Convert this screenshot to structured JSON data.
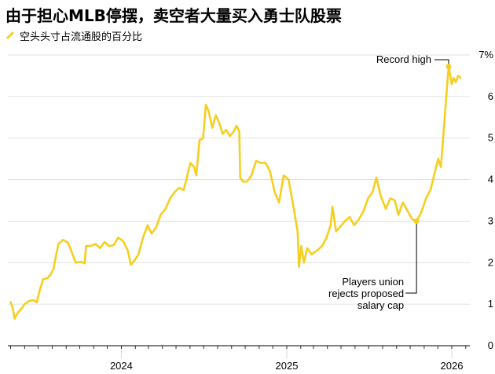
{
  "title": "由于担心MLB停摆，卖空者大量买入勇士队股票",
  "colors": {
    "series": "#f5cf1f",
    "grid": "#d9d9d9",
    "axis": "#000000",
    "marker_line": "#000000"
  },
  "chart_data": {
    "type": "line",
    "series": [
      {
        "name": "空头头寸占流通股的百分比",
        "points": [
          [
            "2023-05-01",
            1.05
          ],
          [
            "2023-05-06",
            0.9
          ],
          [
            "2023-05-10",
            0.65
          ],
          [
            "2023-05-16",
            0.78
          ],
          [
            "2023-05-24",
            0.88
          ],
          [
            "2023-06-01",
            1.0
          ],
          [
            "2023-06-10",
            1.07
          ],
          [
            "2023-06-20",
            1.1
          ],
          [
            "2023-06-28",
            1.05
          ],
          [
            "2023-07-05",
            1.35
          ],
          [
            "2023-07-12",
            1.6
          ],
          [
            "2023-07-20",
            1.62
          ],
          [
            "2023-07-28",
            1.7
          ],
          [
            "2023-08-04",
            1.85
          ],
          [
            "2023-08-10",
            2.2
          ],
          [
            "2023-08-15",
            2.45
          ],
          [
            "2023-08-25",
            2.55
          ],
          [
            "2023-09-05",
            2.48
          ],
          [
            "2023-09-12",
            2.3
          ],
          [
            "2023-09-22",
            2.0
          ],
          [
            "2023-10-05",
            2.02
          ],
          [
            "2023-10-12",
            1.98
          ],
          [
            "2023-10-15",
            2.4
          ],
          [
            "2023-10-25",
            2.4
          ],
          [
            "2023-11-05",
            2.45
          ],
          [
            "2023-11-15",
            2.35
          ],
          [
            "2023-11-25",
            2.5
          ],
          [
            "2023-12-05",
            2.4
          ],
          [
            "2023-12-15",
            2.42
          ],
          [
            "2023-12-25",
            2.6
          ],
          [
            "2024-01-05",
            2.52
          ],
          [
            "2024-01-15",
            2.3
          ],
          [
            "2024-01-22",
            1.95
          ],
          [
            "2024-01-30",
            2.05
          ],
          [
            "2024-02-08",
            2.2
          ],
          [
            "2024-02-18",
            2.6
          ],
          [
            "2024-02-28",
            2.9
          ],
          [
            "2024-03-08",
            2.7
          ],
          [
            "2024-03-18",
            2.85
          ],
          [
            "2024-03-28",
            3.15
          ],
          [
            "2024-04-08",
            3.3
          ],
          [
            "2024-04-18",
            3.55
          ],
          [
            "2024-04-28",
            3.7
          ],
          [
            "2024-05-08",
            3.8
          ],
          [
            "2024-05-18",
            3.75
          ],
          [
            "2024-05-25",
            4.05
          ],
          [
            "2024-06-02",
            4.4
          ],
          [
            "2024-06-10",
            4.3
          ],
          [
            "2024-06-15",
            4.1
          ],
          [
            "2024-06-22",
            4.95
          ],
          [
            "2024-06-30",
            5.0
          ],
          [
            "2024-07-06",
            5.8
          ],
          [
            "2024-07-12",
            5.65
          ],
          [
            "2024-07-20",
            5.25
          ],
          [
            "2024-07-28",
            5.55
          ],
          [
            "2024-08-05",
            5.35
          ],
          [
            "2024-08-12",
            5.1
          ],
          [
            "2024-08-20",
            5.2
          ],
          [
            "2024-08-28",
            5.05
          ],
          [
            "2024-09-05",
            5.15
          ],
          [
            "2024-09-12",
            5.3
          ],
          [
            "2024-09-18",
            5.15
          ],
          [
            "2024-09-20",
            4.05
          ],
          [
            "2024-09-26",
            3.95
          ],
          [
            "2024-10-05",
            3.95
          ],
          [
            "2024-10-15",
            4.1
          ],
          [
            "2024-10-25",
            4.45
          ],
          [
            "2024-11-05",
            4.4
          ],
          [
            "2024-11-15",
            4.4
          ],
          [
            "2024-11-25",
            4.2
          ],
          [
            "2024-12-05",
            3.7
          ],
          [
            "2024-12-15",
            3.45
          ],
          [
            "2024-12-25",
            4.1
          ],
          [
            "2025-01-05",
            4.0
          ],
          [
            "2025-01-15",
            3.4
          ],
          [
            "2025-01-25",
            2.75
          ],
          [
            "2025-01-28",
            1.9
          ],
          [
            "2025-02-02",
            2.4
          ],
          [
            "2025-02-08",
            2.0
          ],
          [
            "2025-02-15",
            2.35
          ],
          [
            "2025-02-25",
            2.2
          ],
          [
            "2025-03-10",
            2.3
          ],
          [
            "2025-03-20",
            2.4
          ],
          [
            "2025-03-30",
            2.6
          ],
          [
            "2025-04-08",
            2.9
          ],
          [
            "2025-04-12",
            3.35
          ],
          [
            "2025-04-20",
            2.75
          ],
          [
            "2025-04-28",
            2.85
          ],
          [
            "2025-05-10",
            3.0
          ],
          [
            "2025-05-20",
            3.1
          ],
          [
            "2025-05-30",
            2.9
          ],
          [
            "2025-06-10",
            3.05
          ],
          [
            "2025-06-20",
            3.25
          ],
          [
            "2025-06-30",
            3.55
          ],
          [
            "2025-07-10",
            3.7
          ],
          [
            "2025-07-18",
            4.05
          ],
          [
            "2025-07-28",
            3.6
          ],
          [
            "2025-08-08",
            3.3
          ],
          [
            "2025-08-18",
            3.55
          ],
          [
            "2025-08-28",
            3.5
          ],
          [
            "2025-09-05",
            3.15
          ],
          [
            "2025-09-15",
            3.45
          ],
          [
            "2025-09-25",
            3.25
          ],
          [
            "2025-10-05",
            3.05
          ],
          [
            "2025-10-15",
            3.0
          ],
          [
            "2025-10-25",
            3.2
          ],
          [
            "2025-11-05",
            3.55
          ],
          [
            "2025-11-15",
            3.75
          ],
          [
            "2025-11-25",
            4.2
          ],
          [
            "2025-12-02",
            4.5
          ],
          [
            "2025-12-08",
            4.3
          ],
          [
            "2025-12-15",
            5.3
          ],
          [
            "2025-12-22",
            6.3
          ],
          [
            "2025-12-25",
            6.72
          ],
          [
            "2026-01-01",
            6.3
          ],
          [
            "2026-01-05",
            6.45
          ],
          [
            "2026-01-10",
            6.35
          ],
          [
            "2026-01-15",
            6.5
          ],
          [
            "2026-01-20",
            6.45
          ]
        ]
      }
    ],
    "xticks": [
      {
        "date": "2024-01-01",
        "label": "2024"
      },
      {
        "date": "2025-01-01",
        "label": "2025"
      },
      {
        "date": "2026-01-01",
        "label": "2026"
      }
    ],
    "yticks": [
      0,
      1,
      2,
      3,
      4,
      5,
      6,
      7
    ],
    "ytick_labels": [
      "0",
      "1",
      "2",
      "3",
      "4",
      "5",
      "6",
      "7%"
    ],
    "ylim": [
      0,
      7
    ],
    "xlim": [
      "2023-04-25",
      "2026-02-10"
    ],
    "grid": "horizontal",
    "annotations": [
      {
        "date": "2025-12-25",
        "value": 6.72,
        "text": [
          "Record high"
        ]
      },
      {
        "date": "2025-10-15",
        "value": 3.0,
        "text": [
          "Players union",
          "rejects proposed",
          "salary cap"
        ]
      }
    ]
  }
}
